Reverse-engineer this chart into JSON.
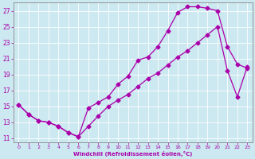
{
  "xlabel": "Windchill (Refroidissement éolien,°C)",
  "bg_color": "#cce8f0",
  "line_color": "#aa00aa",
  "xlim_min": -0.5,
  "xlim_max": 23.5,
  "ylim_min": 10.5,
  "ylim_max": 28.0,
  "xticks": [
    0,
    1,
    2,
    3,
    4,
    5,
    6,
    7,
    8,
    9,
    10,
    11,
    12,
    13,
    14,
    15,
    16,
    17,
    18,
    19,
    20,
    21,
    22,
    23
  ],
  "yticks": [
    11,
    13,
    15,
    17,
    19,
    21,
    23,
    25,
    27
  ],
  "line1_x": [
    0,
    1,
    2,
    3,
    4,
    5,
    6,
    7,
    8,
    9,
    10,
    11,
    12,
    13,
    14,
    15,
    16,
    17,
    18,
    19,
    20,
    21,
    22,
    23
  ],
  "line1_y": [
    15.2,
    14.0,
    13.2,
    13.0,
    12.5,
    11.7,
    11.2,
    14.8,
    15.5,
    16.2,
    17.8,
    18.8,
    20.8,
    21.2,
    22.5,
    24.5,
    26.8,
    27.5,
    27.5,
    27.3,
    27.0,
    22.5,
    20.3,
    19.8
  ],
  "line2_x": [
    0,
    1,
    2,
    3,
    4,
    5,
    6,
    7,
    8,
    9,
    10,
    11,
    12,
    13,
    14,
    15,
    16,
    17,
    18,
    19,
    20,
    21,
    22,
    23
  ],
  "line2_y": [
    15.2,
    14.0,
    13.2,
    13.0,
    12.5,
    11.7,
    11.2,
    12.5,
    13.8,
    15.0,
    15.8,
    16.5,
    17.5,
    18.5,
    19.2,
    20.2,
    21.2,
    22.0,
    23.0,
    24.0,
    25.0,
    19.5,
    16.2,
    20.0
  ]
}
